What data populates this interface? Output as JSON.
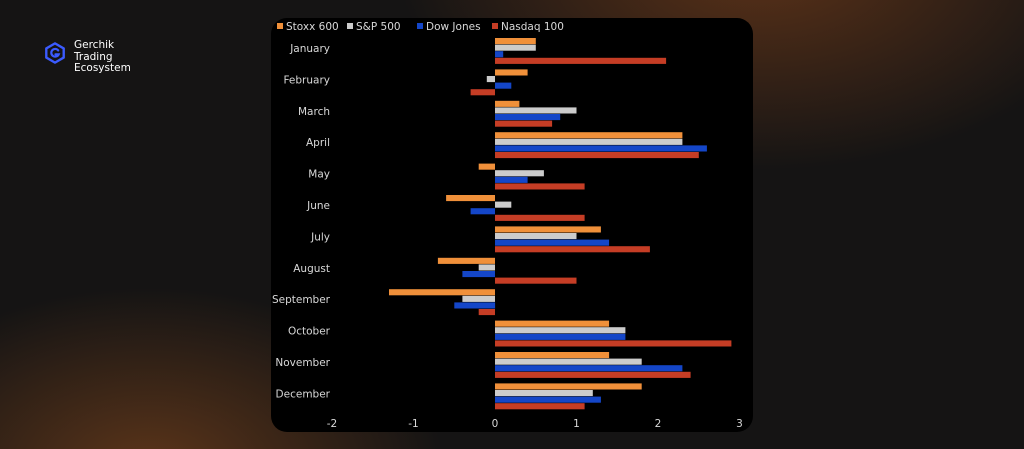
{
  "brand": {
    "name_lines": [
      "Gerchik",
      "Trading",
      "Ecosystem"
    ],
    "accent": "#3b5bff",
    "icon": "hexagon-g-logo-icon"
  },
  "chart_data": {
    "type": "bar",
    "orientation": "horizontal",
    "title": "",
    "xlabel": "",
    "ylabel": "",
    "categories": [
      "January",
      "February",
      "March",
      "April",
      "May",
      "June",
      "July",
      "August",
      "September",
      "October",
      "November",
      "December"
    ],
    "series": [
      {
        "name": "Stoxx 600",
        "color": "#f0903a",
        "values": [
          0.5,
          0.4,
          0.3,
          2.3,
          -0.2,
          -0.6,
          1.3,
          -0.7,
          -1.3,
          1.4,
          1.4,
          1.8
        ]
      },
      {
        "name": "S&P 500",
        "color": "#cccccc",
        "values": [
          0.5,
          -0.1,
          1.0,
          2.3,
          0.6,
          0.2,
          1.0,
          -0.2,
          -0.4,
          1.6,
          1.8,
          1.2
        ]
      },
      {
        "name": "Dow Jones",
        "color": "#1446c8",
        "values": [
          0.1,
          0.2,
          0.8,
          2.6,
          0.4,
          -0.3,
          1.4,
          -0.4,
          -0.5,
          1.6,
          2.3,
          1.3
        ]
      },
      {
        "name": "Nasdaq 100",
        "color": "#c53d25",
        "values": [
          2.1,
          -0.3,
          0.7,
          2.5,
          1.1,
          1.1,
          1.9,
          1.0,
          -0.2,
          2.9,
          2.4,
          1.1
        ]
      }
    ],
    "xlim": [
      -2,
      3
    ],
    "xticks": [
      -2,
      -1,
      0,
      1,
      2,
      3
    ],
    "grid": false,
    "legend_position": "top-left"
  }
}
